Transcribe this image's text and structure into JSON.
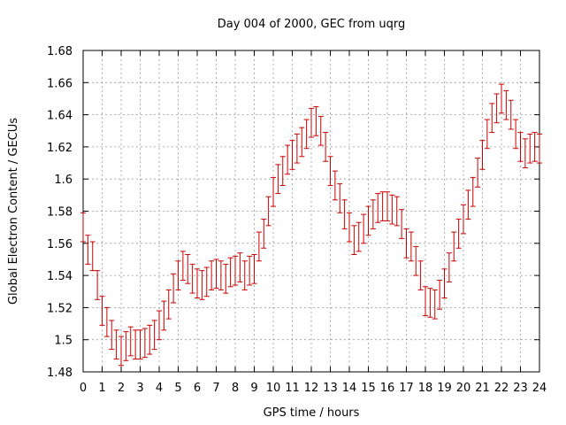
{
  "chart_data": {
    "type": "scatter",
    "title": "Day 004 of 2000, GEC from uqrg",
    "xlabel": "GPS time / hours",
    "ylabel": "Global Electron Content / GECUs",
    "xlim": [
      0,
      24
    ],
    "ylim": [
      1.48,
      1.68
    ],
    "grid": true,
    "x_ticks": [
      0,
      1,
      2,
      3,
      4,
      5,
      6,
      7,
      8,
      9,
      10,
      11,
      12,
      13,
      14,
      15,
      16,
      17,
      18,
      19,
      20,
      21,
      22,
      23,
      24
    ],
    "y_ticks": [
      1.48,
      1.5,
      1.52,
      1.54,
      1.56,
      1.58,
      1.6,
      1.62,
      1.64,
      1.66,
      1.68
    ],
    "y_tick_labels": [
      "1.48",
      "1.5",
      "1.52",
      "1.54",
      "1.56",
      "1.58",
      "1.6",
      "1.62",
      "1.64",
      "1.66",
      "1.68"
    ],
    "error": 0.009,
    "colors": {
      "points": "#cc0000",
      "grid": "#999999"
    },
    "x": [
      0,
      0.25,
      0.5,
      0.75,
      1,
      1.25,
      1.5,
      1.75,
      2,
      2.25,
      2.5,
      2.75,
      3,
      3.25,
      3.5,
      3.75,
      4,
      4.25,
      4.5,
      4.75,
      5,
      5.25,
      5.5,
      5.75,
      6,
      6.25,
      6.5,
      6.75,
      7,
      7.25,
      7.5,
      7.75,
      8,
      8.25,
      8.5,
      8.75,
      9,
      9.25,
      9.5,
      9.75,
      10,
      10.25,
      10.5,
      10.75,
      11,
      11.25,
      11.5,
      11.75,
      12,
      12.25,
      12.5,
      12.75,
      13,
      13.25,
      13.5,
      13.75,
      14,
      14.25,
      14.5,
      14.75,
      15,
      15.25,
      15.5,
      15.75,
      16,
      16.25,
      16.5,
      16.75,
      17,
      17.25,
      17.5,
      17.75,
      18,
      18.25,
      18.5,
      18.75,
      19,
      19.25,
      19.5,
      19.75,
      20,
      20.25,
      20.5,
      20.75,
      21,
      21.25,
      21.5,
      21.75,
      22,
      22.25,
      22.5,
      22.75,
      23,
      23.25,
      23.5,
      23.75,
      24
    ],
    "y": [
      1.57,
      1.556,
      1.552,
      1.534,
      1.518,
      1.511,
      1.503,
      1.497,
      1.493,
      1.496,
      1.499,
      1.497,
      1.497,
      1.498,
      1.5,
      1.503,
      1.509,
      1.515,
      1.522,
      1.532,
      1.54,
      1.546,
      1.544,
      1.538,
      1.535,
      1.534,
      1.536,
      1.54,
      1.541,
      1.54,
      1.538,
      1.542,
      1.543,
      1.545,
      1.54,
      1.543,
      1.544,
      1.558,
      1.566,
      1.58,
      1.592,
      1.6,
      1.605,
      1.612,
      1.615,
      1.619,
      1.623,
      1.628,
      1.635,
      1.636,
      1.63,
      1.62,
      1.605,
      1.596,
      1.588,
      1.578,
      1.57,
      1.562,
      1.564,
      1.569,
      1.574,
      1.578,
      1.582,
      1.583,
      1.583,
      1.581,
      1.58,
      1.572,
      1.56,
      1.558,
      1.549,
      1.54,
      1.524,
      1.523,
      1.522,
      1.528,
      1.535,
      1.545,
      1.558,
      1.566,
      1.575,
      1.584,
      1.592,
      1.604,
      1.615,
      1.628,
      1.638,
      1.644,
      1.65,
      1.646,
      1.64,
      1.628,
      1.62,
      1.616,
      1.619,
      1.62,
      1.619
    ]
  }
}
